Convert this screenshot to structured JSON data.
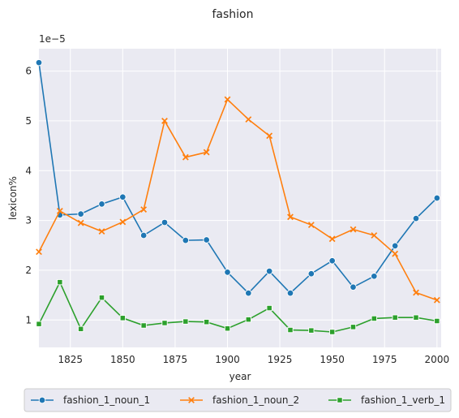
{
  "chart_data": {
    "type": "line",
    "title": "fashion",
    "xlabel": "year",
    "ylabel": "lexicon%",
    "y_offset_label": "1e−5",
    "y_scale": 1e-05,
    "xlim": [
      1810,
      2002
    ],
    "ylim": [
      0.45,
      6.45
    ],
    "x_ticks": [
      1825,
      1850,
      1875,
      1900,
      1925,
      1950,
      1975,
      2000
    ],
    "y_ticks": [
      1,
      2,
      3,
      4,
      5,
      6
    ],
    "grid": true,
    "background": "#eaeaf2",
    "legend_position": "bottom",
    "x": [
      1810,
      1820,
      1830,
      1840,
      1850,
      1860,
      1870,
      1880,
      1890,
      1900,
      1910,
      1920,
      1930,
      1940,
      1950,
      1960,
      1970,
      1980,
      1990,
      2000
    ],
    "series": [
      {
        "name": "fashion_1_noun_1",
        "color": "#1f77b4",
        "marker": "circle",
        "values": [
          6.17,
          3.11,
          3.13,
          3.33,
          3.47,
          2.7,
          2.96,
          2.6,
          2.61,
          1.96,
          1.54,
          1.98,
          1.54,
          1.93,
          2.19,
          1.66,
          1.88,
          2.49,
          3.04,
          3.45
        ]
      },
      {
        "name": "fashion_1_noun_2",
        "color": "#ff7f0e",
        "marker": "x",
        "values": [
          2.37,
          3.19,
          2.95,
          2.78,
          2.97,
          3.22,
          5.0,
          4.27,
          4.37,
          5.43,
          5.03,
          4.7,
          3.07,
          2.91,
          2.63,
          2.82,
          2.7,
          2.33,
          1.55,
          1.4
        ]
      },
      {
        "name": "fashion_1_verb_1",
        "color": "#2ca02c",
        "marker": "square",
        "values": [
          0.92,
          1.76,
          0.82,
          1.45,
          1.04,
          0.89,
          0.94,
          0.97,
          0.96,
          0.83,
          1.01,
          1.24,
          0.8,
          0.79,
          0.76,
          0.86,
          1.03,
          1.05,
          1.05,
          0.98
        ]
      }
    ]
  }
}
